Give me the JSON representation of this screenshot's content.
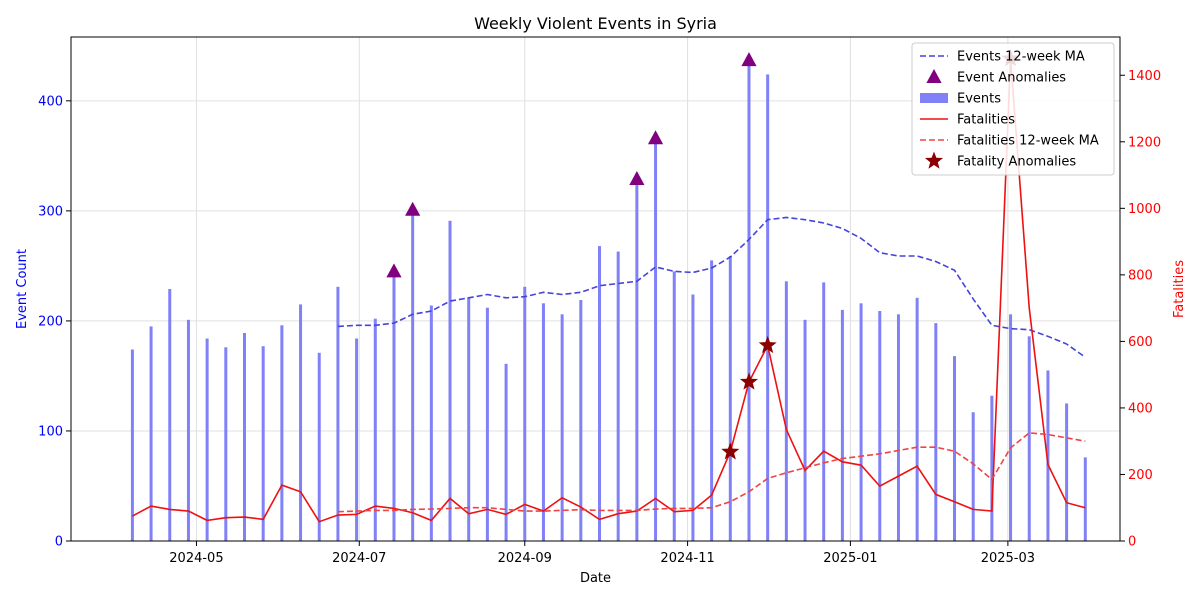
{
  "chart_data": {
    "type": "bar",
    "title": "Weekly Violent Events in Syria",
    "xlabel": "Date",
    "ylabel": "Event Count",
    "y2label": "Fatalities",
    "ylim": [
      0,
      458
    ],
    "y2lim": [
      0,
      1515
    ],
    "yticks": [
      0,
      100,
      200,
      300,
      400
    ],
    "y2ticks": [
      0,
      200,
      400,
      600,
      800,
      1000,
      1200,
      1400
    ],
    "xrange": [
      "2024-03-15",
      "2025-04-12"
    ],
    "xticks": [
      {
        "date": "2024-05-01",
        "label": "2024-05"
      },
      {
        "date": "2024-07-01",
        "label": "2024-07"
      },
      {
        "date": "2024-09-01",
        "label": "2024-09"
      },
      {
        "date": "2024-11-01",
        "label": "2024-11"
      },
      {
        "date": "2025-01-01",
        "label": "2025-01"
      },
      {
        "date": "2025-03-01",
        "label": "2025-03"
      }
    ],
    "grid": true,
    "legend_position": "top-right",
    "colors": {
      "events_bar": "#8080f7",
      "events_ma": "#4444dd",
      "event_anomaly": "#800080",
      "fatalities": "#ee1111",
      "fatalities_ma": "#ee4444",
      "fatality_anomaly": "#8b0000",
      "left_axis": "#0000ff",
      "right_axis": "#ff0000"
    },
    "legend": [
      {
        "key": "events_ma",
        "label": "Events 12-week MA"
      },
      {
        "key": "event_anomaly",
        "label": "Event Anomalies"
      },
      {
        "key": "events_bar",
        "label": "Events"
      },
      {
        "key": "fatalities",
        "label": "Fatalities"
      },
      {
        "key": "fatalities_ma",
        "label": "Fatalities 12-week MA"
      },
      {
        "key": "fatality_anomaly",
        "label": "Fatality Anomalies"
      }
    ],
    "dates": [
      "2024-04-07",
      "2024-04-14",
      "2024-04-21",
      "2024-04-28",
      "2024-05-05",
      "2024-05-12",
      "2024-05-19",
      "2024-05-26",
      "2024-06-02",
      "2024-06-09",
      "2024-06-16",
      "2024-06-23",
      "2024-06-30",
      "2024-07-07",
      "2024-07-14",
      "2024-07-21",
      "2024-07-28",
      "2024-08-04",
      "2024-08-11",
      "2024-08-18",
      "2024-08-25",
      "2024-09-01",
      "2024-09-08",
      "2024-09-15",
      "2024-09-22",
      "2024-09-29",
      "2024-10-06",
      "2024-10-13",
      "2024-10-20",
      "2024-10-27",
      "2024-11-03",
      "2024-11-10",
      "2024-11-17",
      "2024-11-24",
      "2024-12-01",
      "2024-12-08",
      "2024-12-15",
      "2024-12-22",
      "2024-12-29",
      "2025-01-05",
      "2025-01-12",
      "2025-01-19",
      "2025-01-26",
      "2025-02-02",
      "2025-02-09",
      "2025-02-16",
      "2025-02-23",
      "2025-03-02",
      "2025-03-09",
      "2025-03-16",
      "2025-03-23",
      "2025-03-30"
    ],
    "events": [
      174,
      195,
      229,
      201,
      184,
      176,
      189,
      177,
      196,
      215,
      171,
      231,
      184,
      202,
      245,
      301,
      214,
      291,
      221,
      212,
      161,
      231,
      216,
      206,
      219,
      268,
      263,
      329,
      366,
      245,
      224,
      255,
      259,
      437,
      424,
      236,
      201,
      235,
      210,
      216,
      209,
      206,
      221,
      198,
      168,
      117,
      132,
      206,
      186,
      155,
      125,
      76
    ],
    "events_ma": [
      null,
      null,
      null,
      null,
      null,
      null,
      null,
      null,
      null,
      null,
      null,
      195,
      196,
      196,
      198,
      206,
      209,
      218,
      221,
      224,
      221,
      222,
      226,
      224,
      226,
      232,
      234,
      236,
      249,
      245,
      244,
      248,
      258,
      274,
      292,
      294,
      292,
      289,
      284,
      275,
      262,
      259,
      259,
      254,
      246,
      220,
      196,
      193,
      192,
      186,
      179,
      167
    ],
    "fatalities": [
      75,
      105,
      95,
      90,
      62,
      70,
      72,
      65,
      168,
      148,
      58,
      78,
      80,
      105,
      98,
      85,
      62,
      128,
      82,
      95,
      80,
      110,
      90,
      130,
      102,
      65,
      82,
      90,
      128,
      88,
      92,
      138,
      268,
      478,
      588,
      335,
      212,
      270,
      238,
      228,
      165,
      195,
      225,
      140,
      118,
      95,
      90,
      1450,
      700,
      230,
      115,
      100
    ],
    "fatalities_ma": [
      null,
      null,
      null,
      null,
      null,
      null,
      null,
      null,
      null,
      null,
      null,
      88,
      90,
      92,
      92,
      95,
      96,
      98,
      100,
      100,
      95,
      90,
      90,
      92,
      94,
      92,
      92,
      92,
      96,
      98,
      98,
      100,
      118,
      148,
      188,
      205,
      220,
      235,
      248,
      255,
      262,
      272,
      282,
      282,
      270,
      232,
      185,
      280,
      325,
      320,
      310,
      300
    ],
    "event_anomalies": [
      {
        "date": "2024-07-14",
        "value": 245
      },
      {
        "date": "2024-07-21",
        "value": 301
      },
      {
        "date": "2024-10-13",
        "value": 329
      },
      {
        "date": "2024-10-20",
        "value": 366
      },
      {
        "date": "2024-11-24",
        "value": 437
      }
    ],
    "fatality_anomalies": [
      {
        "date": "2024-11-17",
        "value": 268
      },
      {
        "date": "2024-11-24",
        "value": 478
      },
      {
        "date": "2024-12-01",
        "value": 588
      },
      {
        "date": "2025-03-02",
        "value": 1450
      }
    ]
  }
}
